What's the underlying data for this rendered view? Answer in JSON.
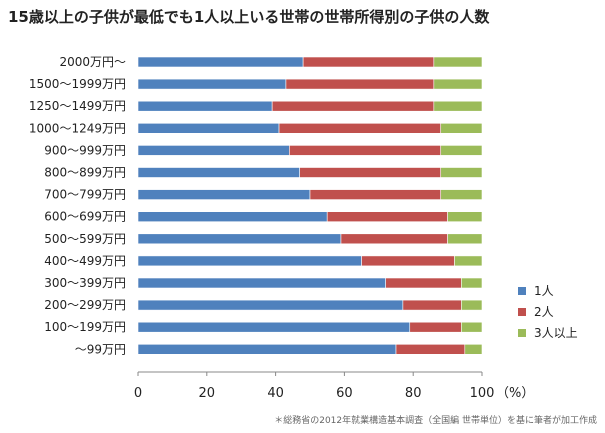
{
  "chart_data": {
    "type": "bar",
    "orientation": "horizontal",
    "stacked": true,
    "title": "15歳以上の子供が最低でも1人以上いる世帯の世帯所得別の子供の人数",
    "categories": [
      "2000万円～",
      "1500～1999万円",
      "1250～1499万円",
      "1000～1249万円",
      "900～999万円",
      "800～899万円",
      "700～799万円",
      "600～699万円",
      "500～599万円",
      "400～499万円",
      "300～399万円",
      "200～299万円",
      "100～199万円",
      "～99万円"
    ],
    "series": [
      {
        "name": "1人",
        "color": "#4F81BD",
        "values": [
          48,
          43,
          39,
          41,
          44,
          47,
          50,
          55,
          59,
          65,
          72,
          77,
          79,
          75
        ]
      },
      {
        "name": "2人",
        "color": "#C0504D",
        "values": [
          38,
          43,
          47,
          47,
          44,
          41,
          38,
          35,
          31,
          27,
          22,
          17,
          15,
          20
        ]
      },
      {
        "name": "3人以上",
        "color": "#9BBB59",
        "values": [
          14,
          14,
          14,
          12,
          12,
          12,
          12,
          10,
          10,
          8,
          6,
          6,
          6,
          5
        ]
      }
    ],
    "xlim": [
      0,
      100
    ],
    "xticks": [
      "0",
      "20",
      "40",
      "60",
      "80",
      "100"
    ],
    "x_unit": "（%）",
    "grid": false,
    "legend_position": "right"
  },
  "source_note": "＊総務省の2012年就業構造基本調査（全国編 世帯単位）を基に筆者が加工作成"
}
